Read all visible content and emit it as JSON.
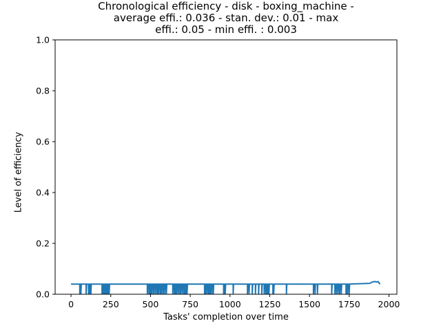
{
  "chart_data": {
    "type": "line",
    "title": "Chronological efficiency - disk - boxing_machine - average effi.: 0.036 - stan. dev.: 0.01 - max effi.: 0.05 - min effi. : 0.003",
    "title_lines": [
      "Chronological efficiency - disk - boxing_machine -",
      "average effi.: 0.036 - stan. dev.: 0.01 - max",
      "effi.: 0.05 - min effi. : 0.003"
    ],
    "xlabel": "Tasks' completion over time",
    "ylabel": "Level of efficiency",
    "xlim": [
      -100,
      2050
    ],
    "ylim": [
      0,
      1.0
    ],
    "x_ticks": [
      0,
      250,
      500,
      750,
      1000,
      1250,
      1500,
      1750,
      2000
    ],
    "y_ticks": [
      0.0,
      0.2,
      0.4,
      0.6,
      0.8,
      1.0
    ],
    "y_tick_labels": [
      "0.0",
      "0.2",
      "0.4",
      "0.6",
      "0.8",
      "1.0"
    ],
    "grid": false,
    "color": "#1f77b4",
    "baseline": 0.04,
    "drop_value": 0.003,
    "tail": [
      {
        "x": 1840,
        "y": 0.042
      },
      {
        "x": 1880,
        "y": 0.043
      },
      {
        "x": 1895,
        "y": 0.048
      },
      {
        "x": 1910,
        "y": 0.05
      },
      {
        "x": 1925,
        "y": 0.048
      },
      {
        "x": 1932,
        "y": 0.05
      },
      {
        "x": 1940,
        "y": 0.042
      },
      {
        "x": 1945,
        "y": 0.04
      }
    ],
    "series": [
      {
        "x_start": 0,
        "x_end": 1945,
        "drops_x": [
          55,
          62,
          95,
          110,
          118,
          125,
          195,
          200,
          205,
          210,
          215,
          220,
          225,
          230,
          235,
          240,
          480,
          490,
          495,
          500,
          505,
          510,
          520,
          530,
          540,
          545,
          550,
          560,
          565,
          570,
          580,
          590,
          600,
          640,
          650,
          655,
          660,
          665,
          675,
          685,
          690,
          700,
          710,
          715,
          720,
          725,
          730,
          840,
          845,
          850,
          860,
          865,
          870,
          875,
          880,
          890,
          895,
          960,
          965,
          970,
          1020,
          1110,
          1120,
          1140,
          1160,
          1180,
          1200,
          1215,
          1225,
          1230,
          1235,
          1240,
          1245,
          1270,
          1275,
          1355,
          1525,
          1535,
          1550,
          1640,
          1660,
          1670,
          1680,
          1690,
          1700,
          1730,
          1735,
          1740,
          1750
        ]
      }
    ]
  }
}
